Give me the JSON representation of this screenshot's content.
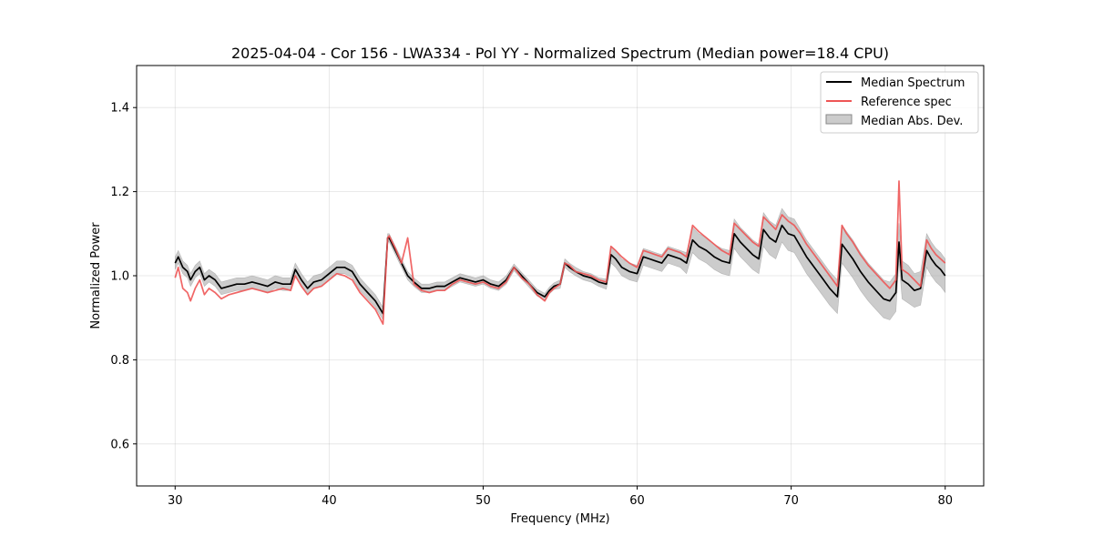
{
  "chart_data": {
    "type": "line",
    "title": "2025-04-04 - Cor 156 - LWA334 - Pol YY - Normalized Spectrum (Median power=18.4 CPU)",
    "xlabel": "Frequency (MHz)",
    "ylabel": "Normalized Power",
    "xlim": [
      27.5,
      82.5
    ],
    "ylim": [
      0.5,
      1.5
    ],
    "xticks": [
      30,
      40,
      50,
      60,
      70,
      80
    ],
    "yticks": [
      0.6,
      0.8,
      1.0,
      1.2,
      1.4
    ],
    "grid": true,
    "legend_position": "top-right",
    "legend": [
      "Median Spectrum",
      "Reference spec",
      "Median Abs. Dev."
    ],
    "colors": {
      "median": "#000000",
      "reference": "#ee5555",
      "mad": "#999999"
    },
    "series": [
      {
        "name": "Median Spectrum",
        "x": [
          30.0,
          30.2,
          30.5,
          30.8,
          31.0,
          31.3,
          31.6,
          31.9,
          32.2,
          32.6,
          33.0,
          33.5,
          34.0,
          34.5,
          35.0,
          35.5,
          36.0,
          36.5,
          37.0,
          37.5,
          37.8,
          38.2,
          38.6,
          39.0,
          39.5,
          40.0,
          40.5,
          41.0,
          41.5,
          42.0,
          42.5,
          43.0,
          43.5,
          43.8,
          43.9,
          44.3,
          44.7,
          45.1,
          45.5,
          46.0,
          46.5,
          47.0,
          47.5,
          48.0,
          48.5,
          49.0,
          49.5,
          50.0,
          50.5,
          51.0,
          51.5,
          52.0,
          52.5,
          53.0,
          53.5,
          54.0,
          54.3,
          54.6,
          55.0,
          55.3,
          55.6,
          56.0,
          56.5,
          57.0,
          57.5,
          58.0,
          58.3,
          58.6,
          59.0,
          59.5,
          60.0,
          60.4,
          60.8,
          61.2,
          61.6,
          62.0,
          62.4,
          62.8,
          63.2,
          63.6,
          64.0,
          64.5,
          65.0,
          65.5,
          66.0,
          66.3,
          66.7,
          67.1,
          67.5,
          67.9,
          68.2,
          68.6,
          69.0,
          69.4,
          69.8,
          70.2,
          70.6,
          71.0,
          71.5,
          72.0,
          72.5,
          73.0,
          73.3,
          73.6,
          74.0,
          74.5,
          75.0,
          75.5,
          76.0,
          76.4,
          76.8,
          77.0,
          77.2,
          77.6,
          78.0,
          78.4,
          78.8,
          79.1,
          79.4,
          79.7,
          80.0
        ],
        "values": [
          1.03,
          1.045,
          1.02,
          1.01,
          0.99,
          1.01,
          1.02,
          0.99,
          1.0,
          0.99,
          0.97,
          0.975,
          0.98,
          0.98,
          0.985,
          0.98,
          0.975,
          0.985,
          0.98,
          0.98,
          1.015,
          0.99,
          0.97,
          0.985,
          0.99,
          1.005,
          1.02,
          1.02,
          1.01,
          0.98,
          0.96,
          0.94,
          0.91,
          1.09,
          1.09,
          1.06,
          1.03,
          1.0,
          0.985,
          0.97,
          0.97,
          0.975,
          0.975,
          0.985,
          0.995,
          0.99,
          0.985,
          0.99,
          0.98,
          0.975,
          0.99,
          1.02,
          1.0,
          0.98,
          0.96,
          0.95,
          0.965,
          0.975,
          0.98,
          1.03,
          1.02,
          1.01,
          1.0,
          0.995,
          0.985,
          0.98,
          1.05,
          1.04,
          1.02,
          1.01,
          1.005,
          1.045,
          1.04,
          1.035,
          1.03,
          1.05,
          1.045,
          1.04,
          1.03,
          1.085,
          1.07,
          1.06,
          1.045,
          1.035,
          1.03,
          1.1,
          1.08,
          1.065,
          1.05,
          1.04,
          1.11,
          1.09,
          1.08,
          1.12,
          1.1,
          1.095,
          1.07,
          1.045,
          1.02,
          0.995,
          0.97,
          0.95,
          1.075,
          1.06,
          1.04,
          1.01,
          0.985,
          0.965,
          0.945,
          0.94,
          0.96,
          1.08,
          0.99,
          0.98,
          0.965,
          0.97,
          1.06,
          1.04,
          1.025,
          1.015,
          1.0
        ]
      },
      {
        "name": "Reference spec",
        "x": [
          30.0,
          30.2,
          30.5,
          30.8,
          31.0,
          31.3,
          31.6,
          31.9,
          32.2,
          32.6,
          33.0,
          33.5,
          34.0,
          34.5,
          35.0,
          35.5,
          36.0,
          36.5,
          37.0,
          37.5,
          37.8,
          38.2,
          38.6,
          39.0,
          39.5,
          40.0,
          40.5,
          41.0,
          41.5,
          42.0,
          42.5,
          43.0,
          43.5,
          43.8,
          43.9,
          44.3,
          44.7,
          45.1,
          45.5,
          46.0,
          46.5,
          47.0,
          47.5,
          48.0,
          48.5,
          49.0,
          49.5,
          50.0,
          50.5,
          51.0,
          51.5,
          52.0,
          52.5,
          53.0,
          53.5,
          54.0,
          54.3,
          54.6,
          55.0,
          55.3,
          55.6,
          56.0,
          56.5,
          57.0,
          57.5,
          58.0,
          58.3,
          58.6,
          59.0,
          59.5,
          60.0,
          60.4,
          60.8,
          61.2,
          61.6,
          62.0,
          62.4,
          62.8,
          63.2,
          63.6,
          64.0,
          64.5,
          65.0,
          65.5,
          66.0,
          66.3,
          66.7,
          67.1,
          67.5,
          67.9,
          68.2,
          68.6,
          69.0,
          69.4,
          69.8,
          70.2,
          70.6,
          71.0,
          71.5,
          72.0,
          72.5,
          73.0,
          73.3,
          73.6,
          74.0,
          74.5,
          75.0,
          75.5,
          76.0,
          76.4,
          76.8,
          77.0,
          77.2,
          77.6,
          78.0,
          78.4,
          78.8,
          79.1,
          79.4,
          79.7,
          80.0
        ],
        "values": [
          0.995,
          1.02,
          0.97,
          0.96,
          0.94,
          0.97,
          0.99,
          0.955,
          0.97,
          0.96,
          0.945,
          0.955,
          0.96,
          0.965,
          0.97,
          0.965,
          0.96,
          0.965,
          0.97,
          0.965,
          1.0,
          0.975,
          0.955,
          0.97,
          0.975,
          0.99,
          1.005,
          1.0,
          0.99,
          0.96,
          0.94,
          0.92,
          0.885,
          1.09,
          1.095,
          1.065,
          1.03,
          1.09,
          0.98,
          0.965,
          0.96,
          0.965,
          0.965,
          0.98,
          0.99,
          0.985,
          0.98,
          0.985,
          0.975,
          0.97,
          0.985,
          1.02,
          0.995,
          0.98,
          0.955,
          0.94,
          0.96,
          0.97,
          0.98,
          1.03,
          1.025,
          1.01,
          1.005,
          1.0,
          0.99,
          0.985,
          1.07,
          1.06,
          1.045,
          1.03,
          1.02,
          1.06,
          1.055,
          1.05,
          1.045,
          1.065,
          1.06,
          1.055,
          1.045,
          1.12,
          1.105,
          1.09,
          1.075,
          1.06,
          1.05,
          1.125,
          1.11,
          1.095,
          1.08,
          1.07,
          1.14,
          1.125,
          1.11,
          1.145,
          1.13,
          1.12,
          1.1,
          1.075,
          1.05,
          1.025,
          1.0,
          0.975,
          1.12,
          1.1,
          1.08,
          1.05,
          1.025,
          1.005,
          0.985,
          0.97,
          0.99,
          1.225,
          1.015,
          1.005,
          0.99,
          0.975,
          1.085,
          1.065,
          1.05,
          1.04,
          1.03
        ]
      }
    ],
    "mad_band": {
      "name": "Median Abs. Dev.",
      "half_width": [
        0.015,
        0.015,
        0.015,
        0.015,
        0.015,
        0.015,
        0.015,
        0.015,
        0.015,
        0.015,
        0.015,
        0.015,
        0.015,
        0.015,
        0.015,
        0.015,
        0.015,
        0.015,
        0.015,
        0.015,
        0.015,
        0.015,
        0.015,
        0.015,
        0.015,
        0.015,
        0.015,
        0.015,
        0.015,
        0.015,
        0.015,
        0.015,
        0.015,
        0.01,
        0.01,
        0.01,
        0.01,
        0.01,
        0.01,
        0.01,
        0.01,
        0.01,
        0.01,
        0.01,
        0.01,
        0.01,
        0.01,
        0.01,
        0.01,
        0.01,
        0.01,
        0.008,
        0.008,
        0.008,
        0.008,
        0.008,
        0.008,
        0.008,
        0.01,
        0.01,
        0.01,
        0.01,
        0.01,
        0.01,
        0.01,
        0.012,
        0.02,
        0.02,
        0.02,
        0.02,
        0.02,
        0.02,
        0.02,
        0.02,
        0.02,
        0.02,
        0.02,
        0.02,
        0.025,
        0.03,
        0.03,
        0.03,
        0.03,
        0.03,
        0.03,
        0.035,
        0.035,
        0.035,
        0.035,
        0.035,
        0.04,
        0.04,
        0.04,
        0.04,
        0.04,
        0.04,
        0.04,
        0.04,
        0.04,
        0.04,
        0.04,
        0.04,
        0.045,
        0.045,
        0.045,
        0.045,
        0.045,
        0.045,
        0.045,
        0.045,
        0.045,
        0.045,
        0.045,
        0.045,
        0.04,
        0.04,
        0.04,
        0.04,
        0.04,
        0.04,
        0.04
      ]
    }
  }
}
